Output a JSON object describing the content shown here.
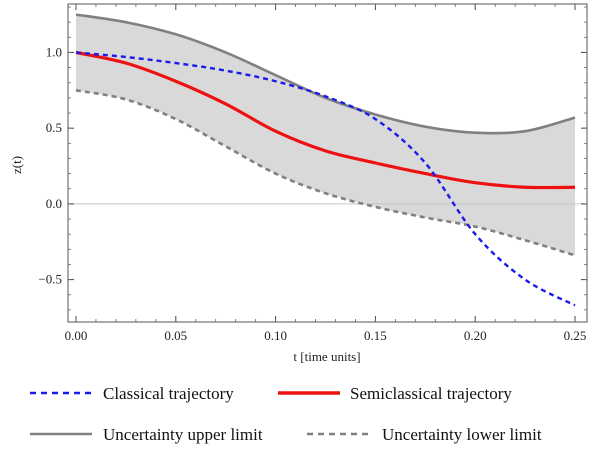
{
  "chart_data": {
    "type": "line",
    "xlabel": "t [time units]",
    "ylabel": "z(t)",
    "xlim": [
      -0.004,
      0.256
    ],
    "ylim": [
      -0.78,
      1.32
    ],
    "xticks": [
      0.0,
      0.05,
      0.1,
      0.15,
      0.2,
      0.25
    ],
    "xtick_labels": [
      "0.00",
      "0.05",
      "0.10",
      "0.15",
      "0.20",
      "0.25"
    ],
    "yticks": [
      -0.5,
      0.0,
      0.5,
      1.0
    ],
    "ytick_labels": [
      "−0.5",
      "0.0",
      "0.5",
      "1.0"
    ],
    "grid": false,
    "band_color": "#d9d9d9",
    "legend_position": "bottom",
    "x": [
      0.0,
      0.025,
      0.05,
      0.075,
      0.1,
      0.125,
      0.15,
      0.175,
      0.2,
      0.225,
      0.25
    ],
    "series": [
      {
        "name": "Classical trajectory",
        "color": "#1a1aee",
        "style": "dashed",
        "values": [
          1.0,
          0.97,
          0.93,
          0.88,
          0.81,
          0.71,
          0.56,
          0.27,
          -0.2,
          -0.5,
          -0.67
        ]
      },
      {
        "name": "Semiclassical trajectory",
        "color": "#ee1111",
        "style": "solid",
        "values": [
          1.0,
          0.93,
          0.81,
          0.66,
          0.48,
          0.35,
          0.27,
          0.2,
          0.14,
          0.11,
          0.11
        ]
      },
      {
        "name": "Uncertainty upper limit",
        "color": "#808080",
        "style": "solid",
        "values": [
          1.25,
          1.2,
          1.12,
          1.0,
          0.85,
          0.7,
          0.59,
          0.51,
          0.47,
          0.48,
          0.57
        ]
      },
      {
        "name": "Uncertainty lower limit",
        "color": "#808080",
        "style": "dashed",
        "values": [
          0.75,
          0.69,
          0.56,
          0.38,
          0.2,
          0.07,
          -0.02,
          -0.09,
          -0.15,
          -0.24,
          -0.34
        ]
      }
    ]
  }
}
